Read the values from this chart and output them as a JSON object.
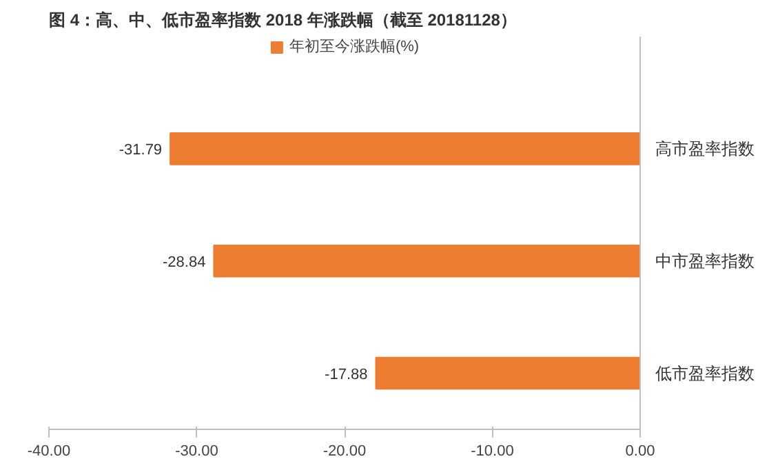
{
  "chart_data": {
    "type": "bar",
    "orientation": "horizontal",
    "title": "图 4：高、中、低市盈率指数 2018 年涨跌幅（截至 20181128）",
    "categories": [
      "高市盈率指数",
      "中市盈率指数",
      "低市盈率指数"
    ],
    "series": [
      {
        "name": "年初至今涨跌幅(%)",
        "color": "#ed7d31",
        "values": [
          -31.79,
          -28.84,
          -17.88
        ]
      }
    ],
    "xlim": [
      -40,
      0
    ],
    "xticks": [
      {
        "value": -40,
        "label": "-40.00"
      },
      {
        "value": -30,
        "label": "-30.00"
      },
      {
        "value": -20,
        "label": "-20.00"
      },
      {
        "value": -10,
        "label": "-10.00"
      },
      {
        "value": 0,
        "label": "0.00"
      }
    ],
    "data_labels": true,
    "legend": "top",
    "grid": false
  }
}
